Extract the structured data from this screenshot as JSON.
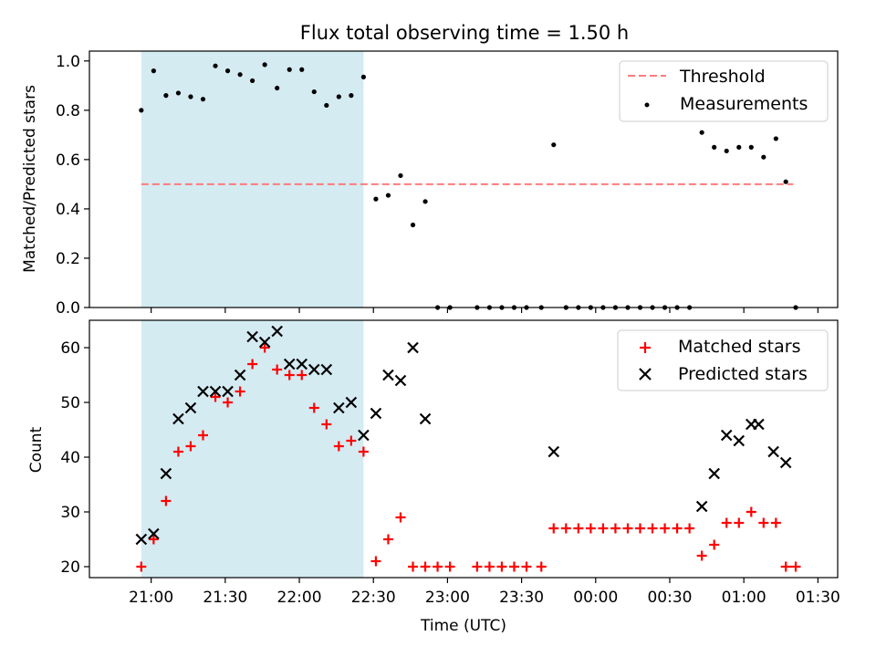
{
  "title": "Flux total observing time = 1.50 h",
  "chart_data": [
    {
      "type": "scatter",
      "ylabel": "Matched/Predicted stars",
      "ylim": [
        0,
        1.04
      ],
      "yticks": [
        0.0,
        0.2,
        0.4,
        0.6,
        0.8,
        1.0
      ],
      "ytick_labels": [
        "0.0",
        "0.2",
        "0.4",
        "0.6",
        "0.8",
        "1.0"
      ],
      "legend_position": "top-right",
      "threshold": {
        "name": "Threshold",
        "value": 0.5,
        "x_start": "20:56",
        "x_end": "01:20",
        "color": "#ff7b7b"
      },
      "highlight_span": {
        "x_start": "20:56",
        "x_end": "22:26",
        "color": "#d4ebf2"
      },
      "series": [
        {
          "name": "Measurements",
          "color": "#000000",
          "x": [
            "20:56",
            "20:61",
            "21:06",
            "21:11",
            "21:16",
            "21:21",
            "21:26",
            "21:31",
            "21:36",
            "21:41",
            "21:46",
            "21:51",
            "21:56",
            "22:01",
            "22:06",
            "22:11",
            "22:16",
            "22:21",
            "22:26",
            "22:31",
            "22:36",
            "22:41",
            "22:46",
            "22:51",
            "22:56",
            "23:01",
            "23:12",
            "23:17",
            "23:22",
            "23:27",
            "23:32",
            "23:38",
            "23:43",
            "23:48",
            "23:53",
            "23:58",
            "00:03",
            "00:08",
            "00:13",
            "00:18",
            "00:23",
            "00:28",
            "00:33",
            "00:38",
            "00:43",
            "00:48",
            "00:53",
            "00:58",
            "01:03",
            "01:08",
            "01:13",
            "01:17",
            "01:21"
          ],
          "y": [
            0.8,
            0.96,
            0.86,
            0.87,
            0.855,
            0.845,
            0.98,
            0.96,
            0.945,
            0.92,
            0.985,
            0.89,
            0.965,
            0.965,
            0.875,
            0.82,
            0.855,
            0.86,
            0.935,
            0.44,
            0.455,
            0.535,
            0.335,
            0.43,
            0.0,
            0.0,
            0.0,
            0.0,
            0.0,
            0.0,
            0.0,
            0.0,
            0.66,
            0.0,
            0.0,
            0.0,
            0.0,
            0.0,
            0.0,
            0.0,
            0.0,
            0.0,
            0.0,
            0.0,
            0.71,
            0.65,
            0.635,
            0.65,
            0.65,
            0.61,
            0.685,
            0.51,
            0.0
          ]
        }
      ]
    },
    {
      "type": "scatter",
      "xlabel": "Time (UTC)",
      "ylabel": "Count",
      "ylim": [
        18,
        65
      ],
      "yticks": [
        20,
        30,
        40,
        50,
        60
      ],
      "ytick_labels": [
        "20",
        "30",
        "40",
        "50",
        "60"
      ],
      "xticks": [
        "21:00",
        "21:30",
        "22:00",
        "22:30",
        "23:00",
        "23:30",
        "00:00",
        "00:30",
        "01:00",
        "01:30"
      ],
      "legend_position": "top-right",
      "highlight_span": {
        "x_start": "20:56",
        "x_end": "22:26",
        "color": "#d4ebf2"
      },
      "series": [
        {
          "name": "Matched stars",
          "marker": "plus",
          "color": "#ff0000",
          "x": [
            "20:56",
            "21:01",
            "21:06",
            "21:11",
            "21:16",
            "21:21",
            "21:26",
            "21:31",
            "21:36",
            "21:41",
            "21:46",
            "21:51",
            "21:56",
            "22:01",
            "22:06",
            "22:11",
            "22:16",
            "22:21",
            "22:26",
            "22:31",
            "22:36",
            "22:41",
            "22:46",
            "22:51",
            "22:56",
            "23:01",
            "23:12",
            "23:17",
            "23:22",
            "23:27",
            "23:32",
            "23:38",
            "23:43",
            "23:48",
            "23:53",
            "23:58",
            "00:03",
            "00:08",
            "00:13",
            "00:18",
            "00:23",
            "00:28",
            "00:33",
            "00:38",
            "00:43",
            "00:48",
            "00:53",
            "00:58",
            "01:03",
            "01:08",
            "01:13",
            "01:17",
            "01:21"
          ],
          "y": [
            20,
            25,
            32,
            41,
            42,
            44,
            51,
            50,
            52,
            57,
            60,
            56,
            55,
            55,
            49,
            46,
            42,
            43,
            41,
            21,
            25,
            29,
            20,
            20,
            20,
            20,
            20,
            20,
            20,
            20,
            20,
            20,
            27,
            27,
            27,
            27,
            27,
            27,
            27,
            27,
            27,
            27,
            27,
            27,
            22,
            24,
            28,
            28,
            30,
            28,
            28,
            20,
            20
          ]
        },
        {
          "name": "Predicted stars",
          "marker": "x",
          "color": "#000000",
          "x": [
            "20:56",
            "21:01",
            "21:06",
            "21:11",
            "21:16",
            "21:21",
            "21:26",
            "21:31",
            "21:36",
            "21:41",
            "21:46",
            "21:51",
            "21:56",
            "22:01",
            "22:06",
            "22:11",
            "22:16",
            "22:21",
            "22:26",
            "22:31",
            "22:36",
            "22:41",
            "22:46",
            "22:51",
            "23:43",
            "00:43",
            "00:48",
            "00:53",
            "00:58",
            "01:03",
            "01:06",
            "01:12",
            "01:17"
          ],
          "y": [
            25,
            26,
            37,
            47,
            49,
            52,
            52,
            52,
            55,
            62,
            61,
            63,
            57,
            57,
            56,
            56,
            49,
            50,
            44,
            48,
            55,
            54,
            60,
            47,
            41,
            31,
            37,
            44,
            43,
            46,
            46,
            41,
            39
          ]
        }
      ]
    }
  ]
}
